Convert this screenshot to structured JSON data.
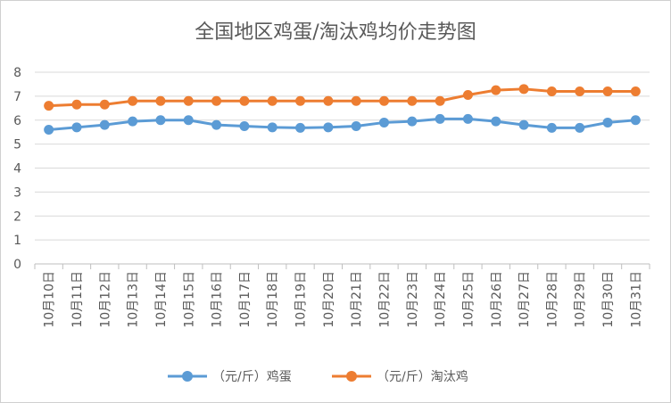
{
  "chart_data": {
    "type": "line",
    "title": "全国地区鸡蛋/淘汰鸡均价走势图",
    "categories": [
      "10月10日",
      "10月11日",
      "10月12日",
      "10月13日",
      "10月14日",
      "10月15日",
      "10月16日",
      "10月17日",
      "10月18日",
      "10月19日",
      "10月20日",
      "10月21日",
      "10月22日",
      "10月23日",
      "10月24日",
      "10月25日",
      "10月26日",
      "10月27日",
      "10月28日",
      "10月29日",
      "10月30日",
      "10月31日"
    ],
    "series": [
      {
        "name": "（元/斤）鸡蛋",
        "color": "#5B9BD5",
        "values": [
          5.6,
          5.7,
          5.8,
          5.95,
          6.0,
          6.0,
          5.8,
          5.75,
          5.7,
          5.68,
          5.7,
          5.75,
          5.9,
          5.95,
          6.05,
          6.05,
          5.95,
          5.8,
          5.68,
          5.68,
          5.9,
          6.0
        ]
      },
      {
        "name": "（元/斤）淘汰鸡",
        "color": "#ED7D31",
        "values": [
          6.6,
          6.65,
          6.65,
          6.8,
          6.8,
          6.8,
          6.8,
          6.8,
          6.8,
          6.8,
          6.8,
          6.8,
          6.8,
          6.8,
          6.8,
          7.05,
          7.25,
          7.3,
          7.2,
          7.2,
          7.2,
          7.2
        ]
      }
    ],
    "ylim": [
      0,
      8
    ],
    "yticks": [
      "0",
      "1",
      "2",
      "3",
      "4",
      "5",
      "6",
      "7",
      "8"
    ],
    "grid": true,
    "legend": "bottom"
  }
}
